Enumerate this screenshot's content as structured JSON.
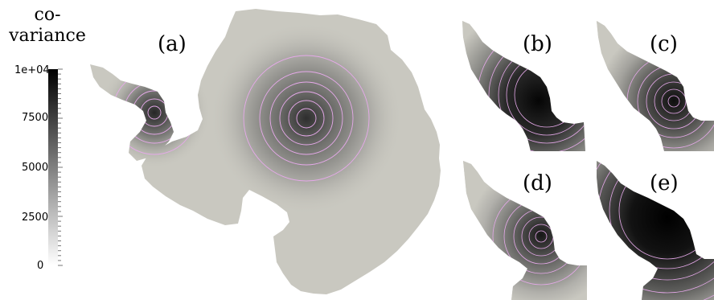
{
  "colorbar": {
    "title_line1": "co-",
    "title_line2": "variance",
    "ticks": [
      {
        "label": "1e+04",
        "value": 10000
      },
      {
        "label": "7500",
        "value": 7500
      },
      {
        "label": "5000",
        "value": 5000
      },
      {
        "label": "2500",
        "value": 2500
      },
      {
        "label": "0",
        "value": 0
      }
    ],
    "range": [
      0,
      10000
    ],
    "colormap": "white-to-black grayscale"
  },
  "panels": [
    {
      "label": "(a)",
      "region": "whole continent",
      "peak": "interior of continent"
    },
    {
      "label": "(b)",
      "region": "peninsula"
    },
    {
      "label": "(c)",
      "region": "peninsula"
    },
    {
      "label": "(d)",
      "region": "peninsula"
    },
    {
      "label": "(e)",
      "region": "peninsula"
    }
  ],
  "colors": {
    "land": "#c9c8c0",
    "contour": "#e6a9ea",
    "background": "#ffffff"
  }
}
